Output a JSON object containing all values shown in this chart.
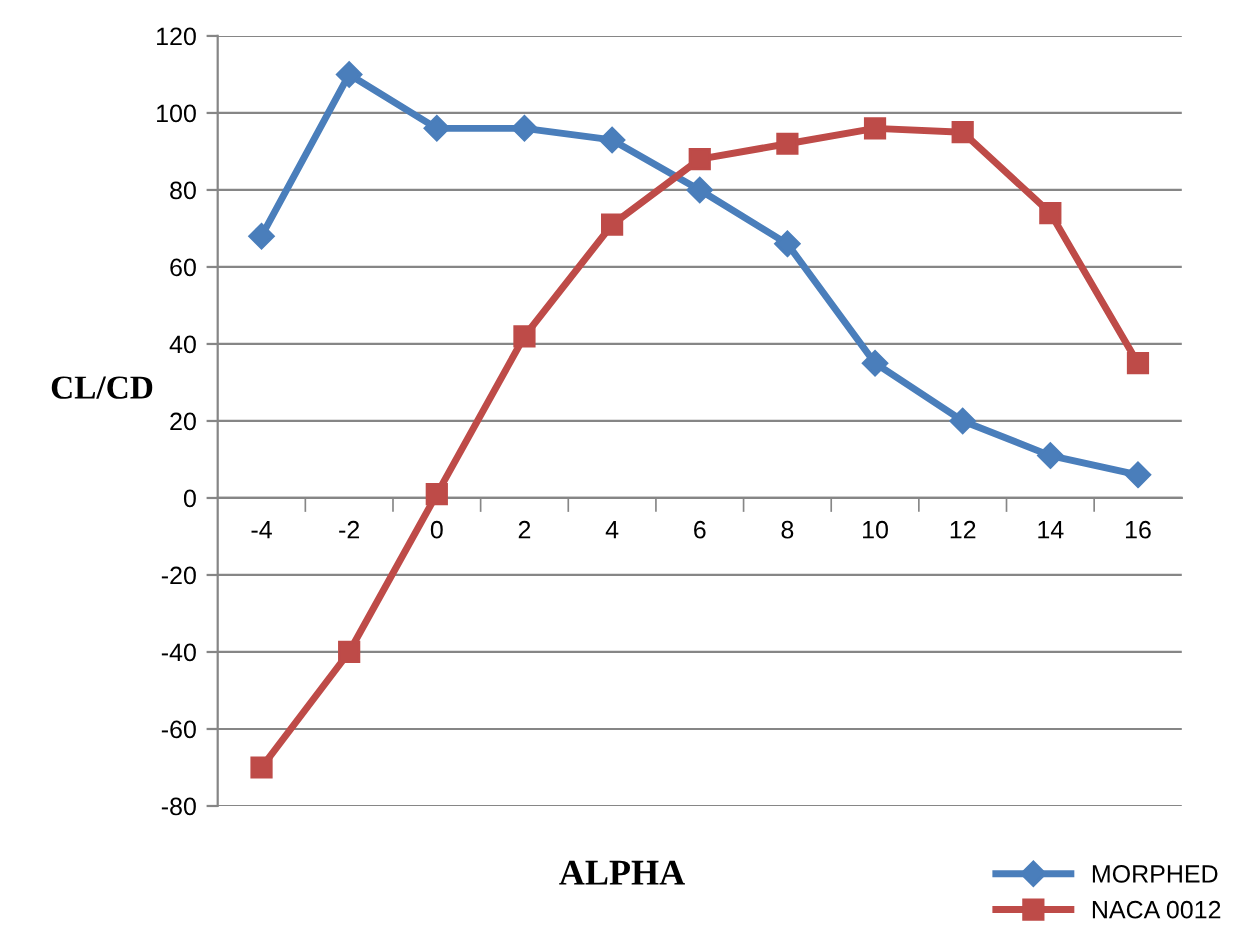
{
  "chart_data": {
    "type": "line",
    "xlabel": "ALPHA",
    "ylabel": "CL/CD",
    "categories": [
      "-4",
      "-2",
      "0",
      "2",
      "4",
      "6",
      "8",
      "10",
      "12",
      "14",
      "16"
    ],
    "series": [
      {
        "name": "MORPHED",
        "color": "#4a7ebb",
        "marker": "diamond",
        "values": [
          68,
          110,
          96,
          96,
          93,
          80,
          66,
          35,
          20,
          11,
          6
        ]
      },
      {
        "name": "NACA 0012",
        "color": "#be4b48",
        "marker": "square",
        "values": [
          -70,
          -40,
          1,
          42,
          71,
          88,
          92,
          96,
          95,
          74,
          35
        ]
      }
    ],
    "ylim": [
      -80,
      120
    ],
    "yticks": [
      -80,
      -60,
      -40,
      -20,
      0,
      20,
      40,
      60,
      80,
      100,
      120
    ],
    "grid": "y",
    "legend": "bottom right",
    "line_style": "solid"
  }
}
